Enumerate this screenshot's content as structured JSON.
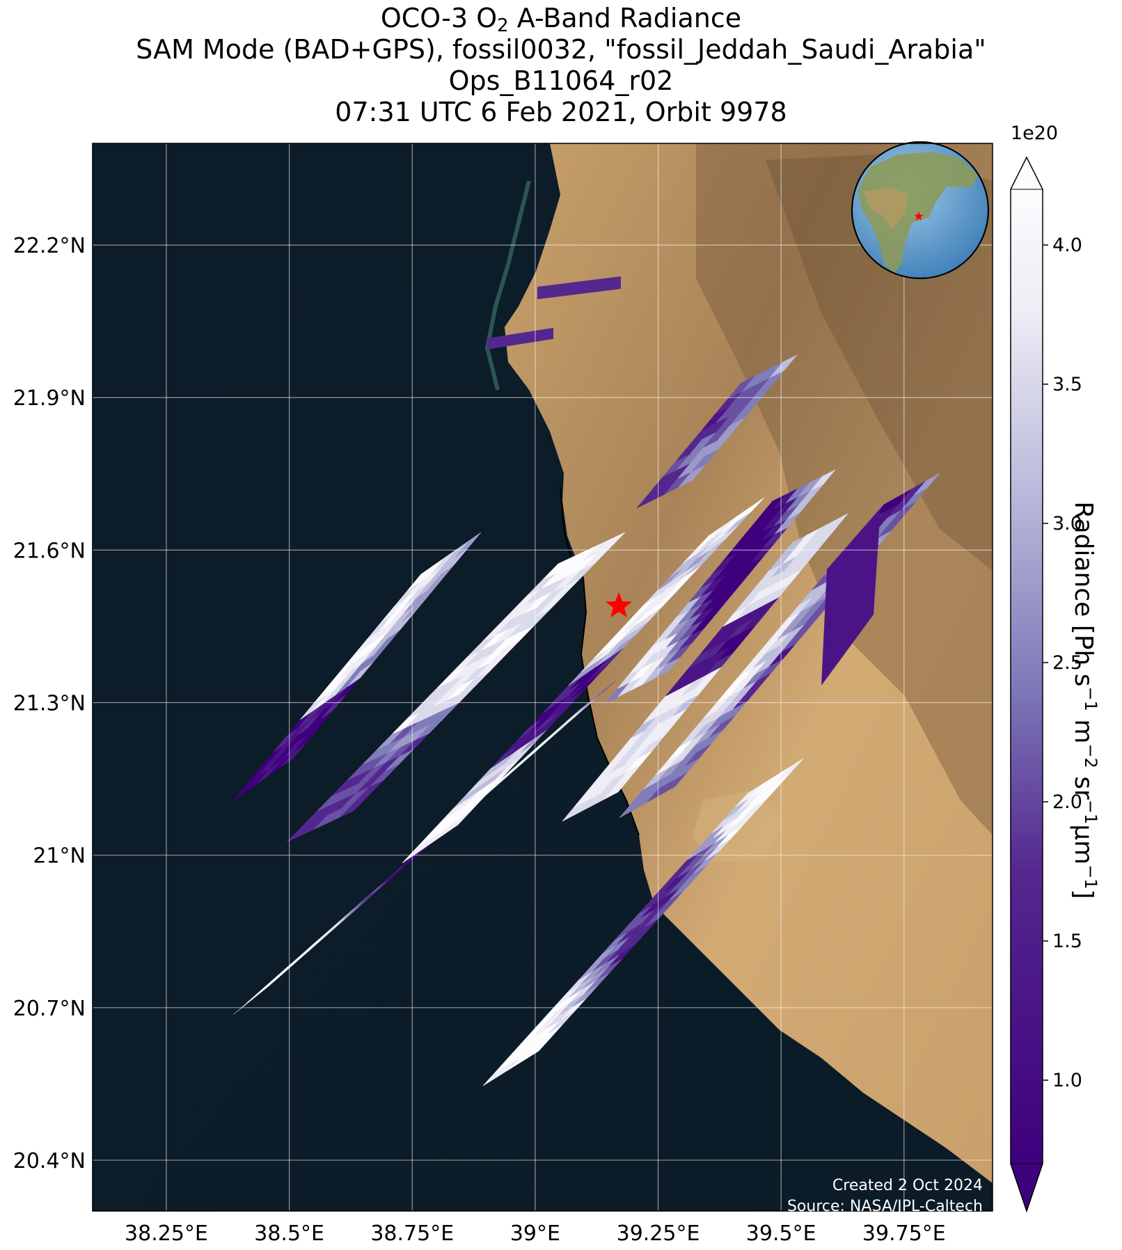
{
  "title": {
    "line1_pre": "OCO-3 O",
    "line1_sub": "2",
    "line1_post": " A-Band Radiance",
    "line2": "SAM Mode (BAD+GPS), fossil0032, \"fossil_Jeddah_Saudi_Arabia\"",
    "line3": "Ops_B11064_r02",
    "line4": "07:31 UTC 6 Feb 2021, Orbit 9978"
  },
  "map": {
    "lon_range": [
      38.1,
      39.93
    ],
    "lat_range": [
      20.3,
      22.4
    ],
    "lon_ticks": [
      38.25,
      38.5,
      38.75,
      39.0,
      39.25,
      39.5,
      39.75
    ],
    "lon_tick_labels": [
      "38.25°E",
      "38.5°E",
      "38.75°E",
      "39°E",
      "39.25°E",
      "39.5°E",
      "39.75°E"
    ],
    "lat_ticks": [
      20.4,
      20.7,
      21.0,
      21.3,
      21.6,
      21.9,
      22.2
    ],
    "lat_tick_labels": [
      "20.4°N",
      "20.7°N",
      "21°N",
      "21.3°N",
      "21.6°N",
      "21.9°N",
      "22.2°N"
    ],
    "grid": true,
    "target_marker": {
      "lon": 39.17,
      "lat": 21.49,
      "color": "#ff0000",
      "shape": "star-icon"
    },
    "inset": "globe-icon"
  },
  "colorbar": {
    "colormap": "Purples_r",
    "min": 0.7,
    "max": 4.2,
    "extend": "both",
    "exponent_label": "1e20",
    "ticks": [
      1.0,
      1.5,
      2.0,
      2.5,
      3.0,
      3.5,
      4.0
    ],
    "tick_labels": [
      "1.0",
      "1.5",
      "2.0",
      "2.5",
      "3.0",
      "3.5",
      "4.0"
    ],
    "label": {
      "p1": "Radiance [Ph s",
      "s1": "−1",
      "p2": " m",
      "s2": "−2",
      "p3": " sr",
      "s3": "−1",
      "p4": "µm",
      "s4": "−1",
      "p5": "]"
    },
    "colors": {
      "low": "#3f007d",
      "mid": "#8d89c0",
      "high": "#fcfbfd"
    }
  },
  "credits": {
    "created": "Created 2 Oct 2024",
    "source": "Source: NASA/JPL-Caltech"
  }
}
